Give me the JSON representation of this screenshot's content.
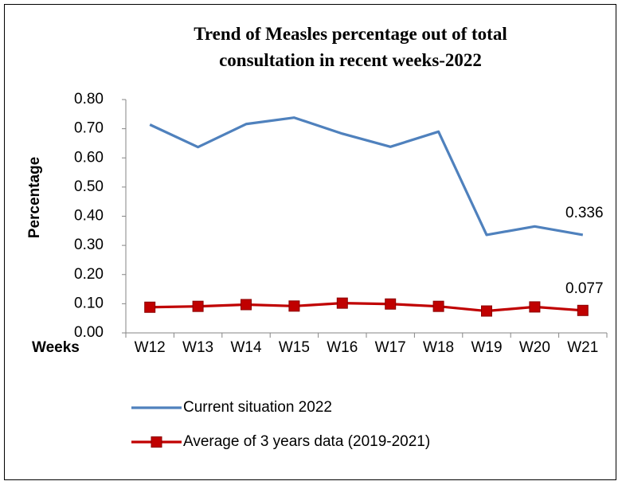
{
  "chart_data": {
    "type": "line",
    "title": "Trend of Measles percentage out of total consultation in recent weeks-2022",
    "xlabel": "Weeks",
    "ylabel": "Percentage",
    "categories": [
      "W12",
      "W13",
      "W14",
      "W15",
      "W16",
      "W17",
      "W18",
      "W19",
      "W20",
      "W21"
    ],
    "series": [
      {
        "name": "Current situation 2022",
        "color": "#4f81bd",
        "marker": false,
        "values": [
          0.714,
          0.637,
          0.716,
          0.738,
          0.683,
          0.638,
          0.69,
          0.336,
          0.365,
          0.336
        ]
      },
      {
        "name": "Average of 3 years data (2019-2021)",
        "color": "#c00000",
        "marker": true,
        "values": [
          0.088,
          0.091,
          0.097,
          0.092,
          0.102,
          0.099,
          0.091,
          0.075,
          0.089,
          0.077
        ]
      }
    ],
    "labeled_points": [
      9
    ],
    "ylim": [
      0,
      0.8
    ],
    "yticks": [
      {
        "value": 0,
        "label": "0.00"
      },
      {
        "value": 0.1,
        "label": "0.10"
      },
      {
        "value": 0.2,
        "label": "0.20"
      },
      {
        "value": 0.3,
        "label": "0.30"
      },
      {
        "value": 0.4,
        "label": "0.40"
      },
      {
        "value": 0.5,
        "label": "0.50"
      },
      {
        "value": 0.6,
        "label": "0.60"
      },
      {
        "value": 0.7,
        "label": "0.70"
      },
      {
        "value": 0.8,
        "label": "0.80"
      }
    ],
    "grid": false,
    "legend": "bottom"
  }
}
